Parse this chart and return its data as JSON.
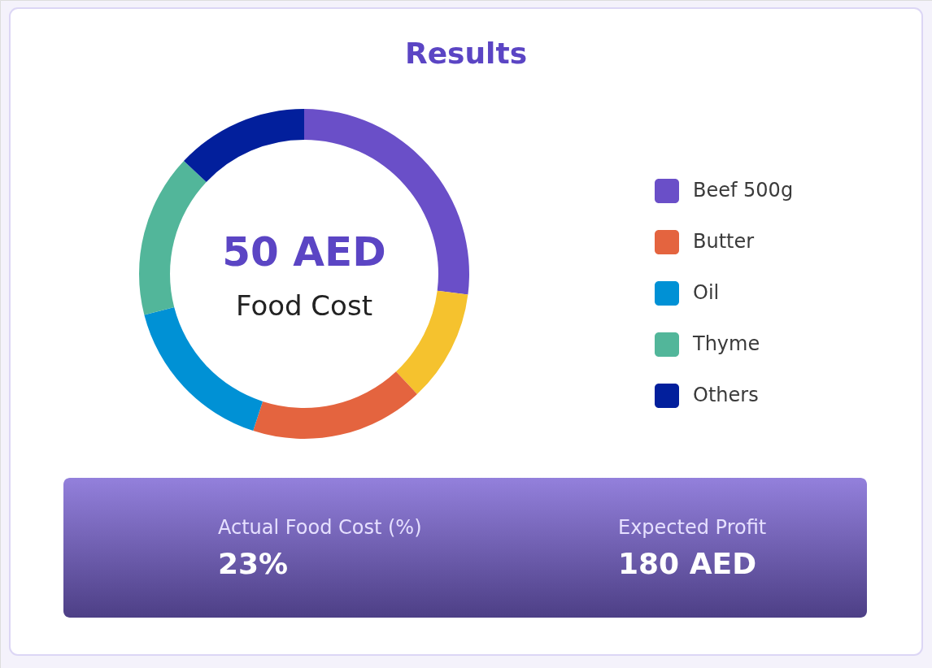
{
  "chart_data": {
    "type": "donut",
    "title": "Results",
    "categories": [
      "Beef 500g",
      null,
      "Butter",
      "Oil",
      "Thyme",
      "Others"
    ],
    "values": [
      27,
      11,
      17,
      16,
      16,
      13
    ],
    "colors": [
      "#6a4fc8",
      "#f5c22e",
      "#e4643f",
      "#0091d5",
      "#52b69a",
      "#021f9c"
    ],
    "legend": "right",
    "annotations": [
      "50 AED",
      "Food Cost",
      "Actual Food Cost (%)",
      "23%",
      "Expected Profit",
      "180 AED"
    ]
  }
}
